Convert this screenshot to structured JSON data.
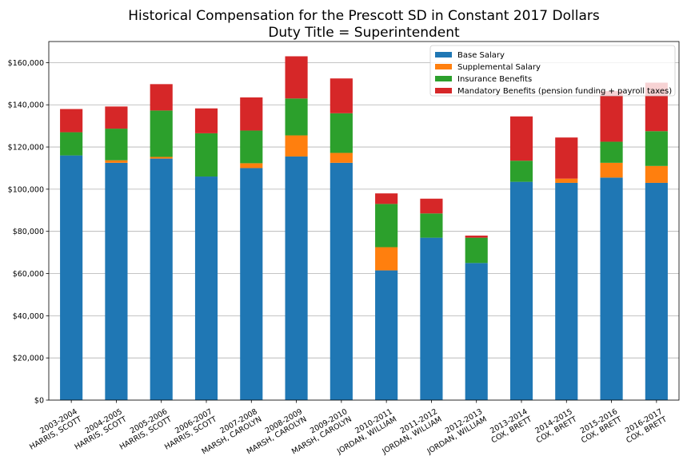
{
  "chart_data": {
    "type": "bar",
    "stacked": true,
    "title": "Historical Compensation for the Prescott SD in Constant 2017 Dollars",
    "subtitle": "Duty Title = Superintendent",
    "xlabel": "",
    "ylabel": "",
    "ylim": [
      0,
      170000
    ],
    "yticks": [
      0,
      20000,
      40000,
      60000,
      80000,
      100000,
      120000,
      140000,
      160000
    ],
    "ytick_labels": [
      "$0",
      "$20,000",
      "$40,000",
      "$60,000",
      "$80,000",
      "$100,000",
      "$120,000",
      "$140,000",
      "$160,000"
    ],
    "grid": "horizontal",
    "legend_position": "top-right",
    "categories": [
      [
        "2003-2004",
        "HARRIS, SCOTT"
      ],
      [
        "2004-2005",
        "HARRIS, SCOTT"
      ],
      [
        "2005-2006",
        "HARRIS, SCOTT"
      ],
      [
        "2006-2007",
        "HARRIS, SCOTT"
      ],
      [
        "2007-2008",
        "MARSH, CAROLYN"
      ],
      [
        "2008-2009",
        "MARSH, CAROLYN"
      ],
      [
        "2009-2010",
        "MARSH, CAROLYN"
      ],
      [
        "2010-2011",
        "JORDAN, WILLIAM"
      ],
      [
        "2011-2012",
        "JORDAN, WILLIAM"
      ],
      [
        "2012-2013",
        "JORDAN, WILLIAM"
      ],
      [
        "2013-2014",
        "COX, BRETT"
      ],
      [
        "2014-2015",
        "COX, BRETT"
      ],
      [
        "2015-2016",
        "COX, BRETT"
      ],
      [
        "2016-2017",
        "COX, BRETT"
      ]
    ],
    "series": [
      {
        "name": "Base Salary",
        "color": "#1f77b4",
        "values": [
          116000,
          112500,
          114500,
          106000,
          110000,
          115500,
          112500,
          61500,
          77000,
          65000,
          103500,
          103000,
          105500,
          103000
        ]
      },
      {
        "name": "Supplemental Salary",
        "color": "#ff7f0e",
        "values": [
          0,
          1200,
          800,
          0,
          2300,
          10000,
          4700,
          11000,
          0,
          0,
          0,
          2000,
          7000,
          8000
        ]
      },
      {
        "name": "Insurance Benefits",
        "color": "#2ca02c",
        "values": [
          11000,
          15000,
          22000,
          20500,
          15500,
          17500,
          18800,
          20500,
          11500,
          12000,
          10000,
          0,
          10000,
          16500
        ]
      },
      {
        "name": "Mandatory Benefits (pension funding + payroll taxes)",
        "color": "#d62728",
        "values": [
          11000,
          10500,
          12500,
          11800,
          15700,
          20000,
          16500,
          5000,
          7000,
          1000,
          21000,
          19500,
          24000,
          23000
        ]
      }
    ]
  }
}
